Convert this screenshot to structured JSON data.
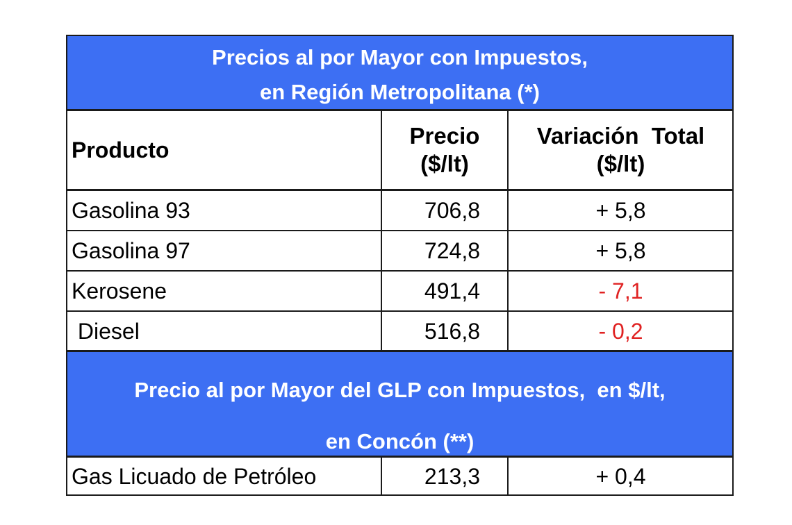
{
  "section1": {
    "title_line1": "Precios al por Mayor con Impuestos,",
    "title_line2": "en Región Metropolitana (*)"
  },
  "headers": {
    "product": "Producto",
    "price_line1": "Precio",
    "price_line2": "($/lt)",
    "variation_line1": "Variación  Total",
    "variation_line2": "($/lt)"
  },
  "rows": [
    {
      "product": "Gasolina 93",
      "price": "706,8",
      "variation": "+ 5,8",
      "negative": false
    },
    {
      "product": "Gasolina 97",
      "price": "724,8",
      "variation": "+ 5,8",
      "negative": false
    },
    {
      "product": "Kerosene",
      "price": "491,4",
      "variation": "- 7,1",
      "negative": true
    },
    {
      "product": " Diesel",
      "price": "516,8",
      "variation": "- 0,2",
      "negative": true
    }
  ],
  "section2": {
    "title_line1": "Precio al por Mayor del GLP con Impuestos,  en $/lt,",
    "title_line2": "en Concón (**)"
  },
  "glp_row": {
    "product": "Gas Licuado de Petróleo",
    "price": "213,3",
    "variation": "+ 0,4"
  },
  "colors": {
    "header_band": "#3d6ff3",
    "negative": "#e02222"
  }
}
